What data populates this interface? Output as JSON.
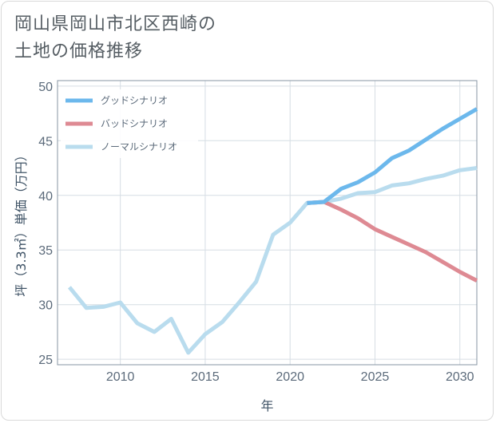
{
  "title_line1": "岡山県岡山市北区西崎の",
  "title_line2": "土地の価格推移",
  "chart_data": {
    "type": "line",
    "xlabel": "年",
    "ylabel": "坪（3.3㎡）単価（万円）",
    "xlim": [
      2006.3,
      2031
    ],
    "ylim": [
      24.5,
      50.5
    ],
    "xticks": [
      2010,
      2015,
      2020,
      2025,
      2030
    ],
    "yticks": [
      25,
      30,
      35,
      40,
      45,
      50
    ],
    "grid": true,
    "legend_position": "top-left",
    "series": [
      {
        "name": "グッドシナリオ",
        "color": "#6cb8ec",
        "x": [
          2021,
          2022,
          2023,
          2024,
          2025,
          2026,
          2027,
          2028,
          2029,
          2030,
          2031
        ],
        "y": [
          39.3,
          39.4,
          40.6,
          41.2,
          42.1,
          43.4,
          44.1,
          45.1,
          46.1,
          47.0,
          47.9
        ]
      },
      {
        "name": "バッドシナリオ",
        "color": "#de8a93",
        "x": [
          2021,
          2022,
          2023,
          2024,
          2025,
          2026,
          2027,
          2028,
          2029,
          2030,
          2031
        ],
        "y": [
          39.3,
          39.4,
          38.7,
          37.9,
          36.9,
          36.2,
          35.5,
          34.8,
          33.9,
          33.0,
          32.2
        ]
      },
      {
        "name": "ノーマルシナリオ",
        "color": "#b9dcee",
        "x": [
          2007,
          2008,
          2009,
          2010,
          2011,
          2012,
          2013,
          2014,
          2015,
          2016,
          2017,
          2018,
          2019,
          2020,
          2021,
          2022,
          2023,
          2024,
          2025,
          2026,
          2027,
          2028,
          2029,
          2030,
          2031
        ],
        "y": [
          31.6,
          29.7,
          29.8,
          30.2,
          28.3,
          27.5,
          28.7,
          25.6,
          27.3,
          28.4,
          30.2,
          32.1,
          36.4,
          37.5,
          39.3,
          39.4,
          39.7,
          40.2,
          40.3,
          40.9,
          41.1,
          41.5,
          41.8,
          42.3,
          42.5
        ]
      }
    ]
  }
}
